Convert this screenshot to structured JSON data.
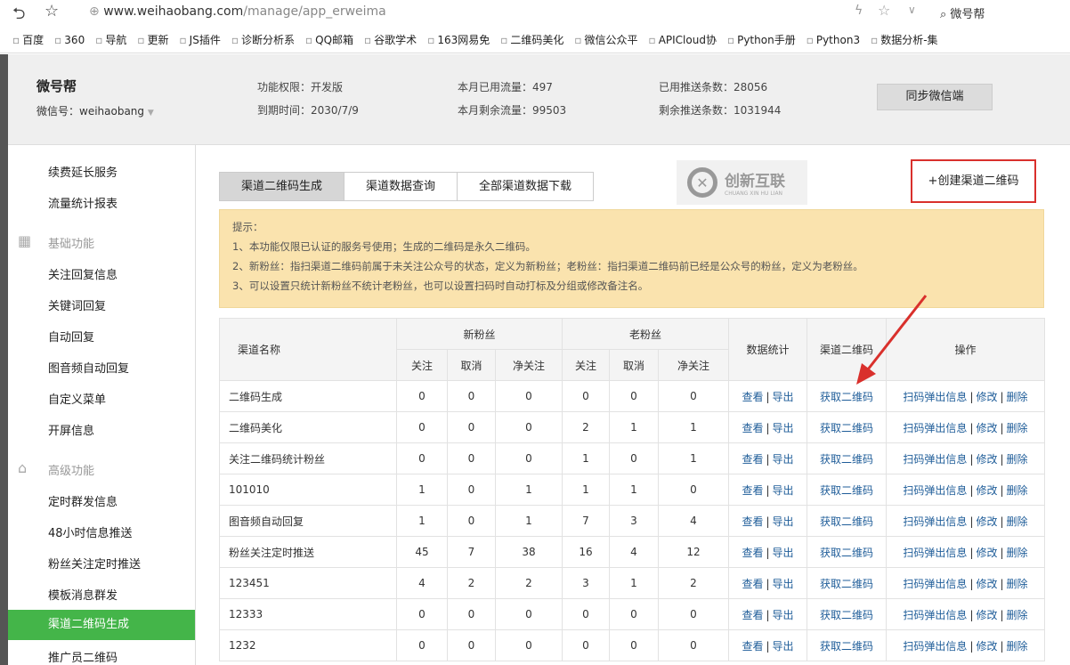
{
  "browser": {
    "url_host": "www.weihaobang.com",
    "url_path": "/manage/app_erweima",
    "search": "微号帮",
    "bookmarks": [
      "百度",
      "360",
      "导航",
      "更新",
      "JS插件",
      "诊断分析系",
      "QQ邮箱",
      "谷歌学术",
      "163网易免",
      "二维码美化",
      "微信公众平",
      "APICloud协",
      "Python手册",
      "Python3",
      "数据分析-集"
    ]
  },
  "header": {
    "title": "微号帮",
    "account": "微信号：weihaobang",
    "permission": "功能权限：开发版",
    "expire": "到期时间：2030/7/9",
    "used_flow": "本月已用流量：497",
    "remain_flow": "本月剩余流量：99503",
    "used_push": "已用推送条数：28056",
    "remain_push": "剩余推送条数：1031944",
    "sync_button": "同步微信端"
  },
  "sidebar": {
    "items": [
      {
        "label": "续费延长服务"
      },
      {
        "label": "流量统计报表"
      },
      {
        "label": "基础功能",
        "group": true
      },
      {
        "label": "关注回复信息"
      },
      {
        "label": "关键词回复"
      },
      {
        "label": "自动回复"
      },
      {
        "label": "图音频自动回复"
      },
      {
        "label": "自定义菜单"
      },
      {
        "label": "开屏信息"
      },
      {
        "label": "高级功能",
        "group": true
      },
      {
        "label": "定时群发信息"
      },
      {
        "label": "48小时信息推送"
      },
      {
        "label": "粉丝关注定时推送"
      },
      {
        "label": "模板消息群发"
      },
      {
        "label": "渠道二维码生成",
        "active": true
      },
      {
        "label": "推广员二维码"
      }
    ]
  },
  "tabs": [
    {
      "label": "渠道二维码生成",
      "active": true
    },
    {
      "label": "渠道数据查询"
    },
    {
      "label": "全部渠道数据下载"
    }
  ],
  "create_button": "+创建渠道二维码",
  "notice": {
    "title": "提示：",
    "lines": [
      "1、本功能仅限已认证的服务号使用；生成的二维码是永久二维码。",
      "2、新粉丝：指扫渠道二维码前属于未关注公众号的状态，定义为新粉丝；老粉丝：指扫渠道二维码前已经是公众号的粉丝，定义为老粉丝。",
      "3、可以设置只统计新粉丝不统计老粉丝，也可以设置扫码时自动打标及分组或修改备注名。"
    ]
  },
  "table": {
    "headers": {
      "name": "渠道名称",
      "new_fans": "新粉丝",
      "old_fans": "老粉丝",
      "stats": "数据统计",
      "qrcode": "渠道二维码",
      "ops": "操作",
      "follow": "关注",
      "cancel": "取消",
      "net": "净关注"
    },
    "links": {
      "view": "查看",
      "export": "导出",
      "get_qr": "获取二维码",
      "popup": "扫码弹出信息",
      "edit": "修改",
      "delete": "删除"
    },
    "rows": [
      [
        "二维码生成",
        0,
        0,
        0,
        0,
        0,
        0
      ],
      [
        "二维码美化",
        0,
        0,
        0,
        2,
        1,
        1
      ],
      [
        "关注二维码统计粉丝",
        0,
        0,
        0,
        1,
        0,
        1
      ],
      [
        "101010",
        1,
        0,
        1,
        1,
        1,
        0
      ],
      [
        "图音频自动回复",
        1,
        0,
        1,
        7,
        3,
        4
      ],
      [
        "粉丝关注定时推送",
        45,
        7,
        38,
        16,
        4,
        12
      ],
      [
        "123451",
        4,
        2,
        2,
        3,
        1,
        2
      ],
      [
        "12333",
        0,
        0,
        0,
        0,
        0,
        0
      ],
      [
        "1232",
        0,
        0,
        0,
        0,
        0,
        0
      ]
    ]
  },
  "watermark": {
    "text": "创新互联",
    "sub": "CHUANG XIN HU LIAN"
  }
}
